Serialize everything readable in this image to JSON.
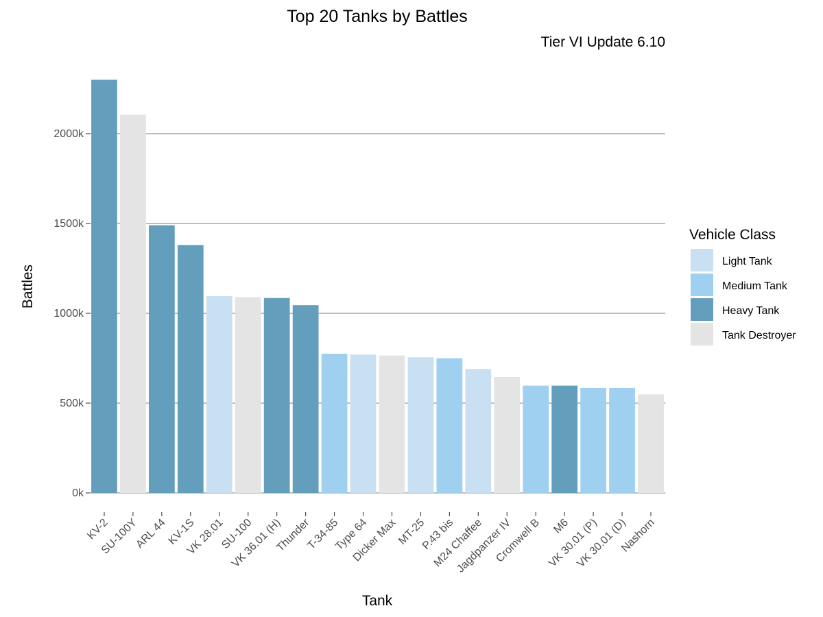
{
  "chart_data": {
    "type": "bar",
    "title": "Top 20 Tanks by Battles",
    "subtitle": "Tier VI Update 6.10",
    "xlabel": "Tank",
    "ylabel": "Battles",
    "ylim": [
      0,
      2300000
    ],
    "yticks": [
      0,
      500000,
      1000000,
      1500000,
      2000000
    ],
    "ytick_labels": [
      "0k",
      "500k",
      "1000k",
      "1500k",
      "2000k"
    ],
    "grid": "horizontal major",
    "categories": [
      "KV-2",
      "SU-100Y",
      "ARL 44",
      "KV-1S",
      "VK 28.01",
      "SU-100",
      "VK 36.01 (H)",
      "Thunder",
      "T-34-85",
      "Type 64",
      "Dicker Max",
      "MT-25",
      "P.43 bis",
      "M24 Chaffee",
      "Jagdpanzer IV",
      "Cromwell B",
      "M6",
      "VK 30.01 (P)",
      "VK 30.01 (D)",
      "Nashorn"
    ],
    "values": [
      2300000,
      2105000,
      1490000,
      1380000,
      1095000,
      1090000,
      1085000,
      1045000,
      775000,
      770000,
      765000,
      755000,
      750000,
      690000,
      645000,
      597000,
      597000,
      584000,
      584000,
      548000
    ],
    "classes": [
      "Heavy Tank",
      "Tank Destroyer",
      "Heavy Tank",
      "Heavy Tank",
      "Light Tank",
      "Tank Destroyer",
      "Heavy Tank",
      "Heavy Tank",
      "Medium Tank",
      "Light Tank",
      "Tank Destroyer",
      "Light Tank",
      "Medium Tank",
      "Light Tank",
      "Tank Destroyer",
      "Medium Tank",
      "Heavy Tank",
      "Medium Tank",
      "Medium Tank",
      "Tank Destroyer"
    ],
    "legend": {
      "title": "Vehicle Class",
      "position": "right",
      "entries": [
        {
          "name": "Light Tank",
          "color": "#c9dff2"
        },
        {
          "name": "Medium Tank",
          "color": "#9fd0f0"
        },
        {
          "name": "Heavy Tank",
          "color": "#649ebd"
        },
        {
          "name": "Tank Destroyer",
          "color": "#e4e4e4"
        }
      ]
    }
  }
}
